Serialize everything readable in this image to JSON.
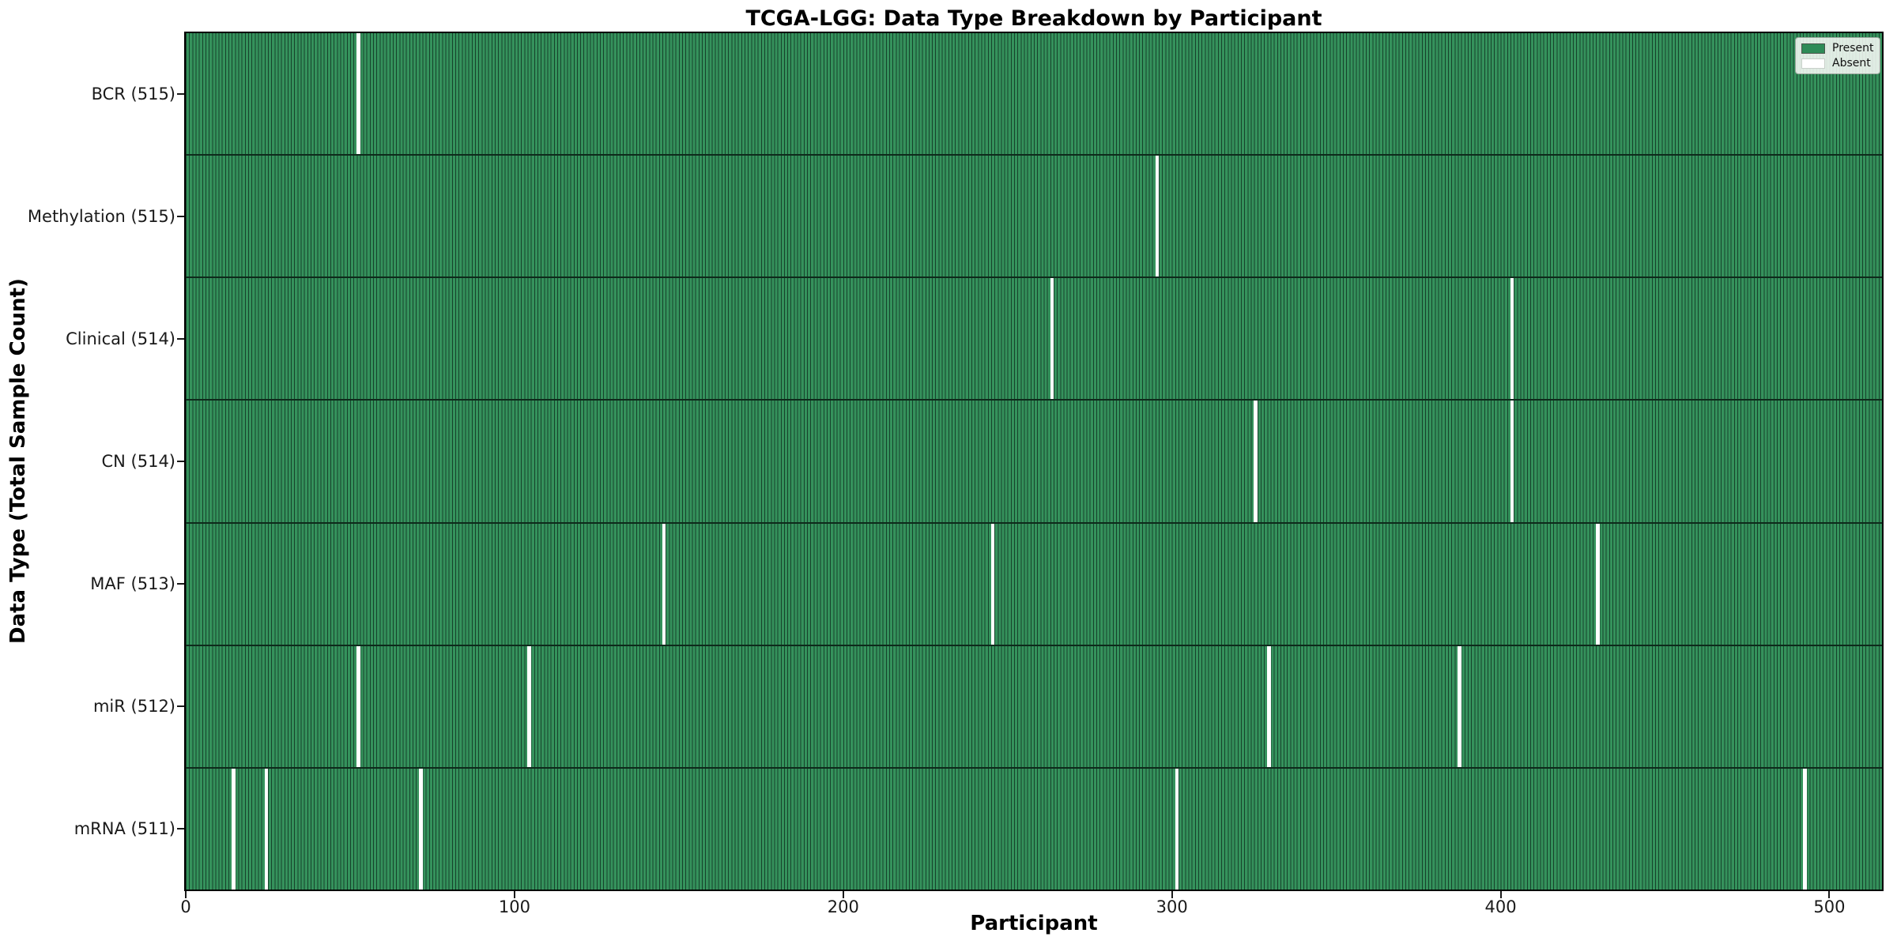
{
  "chart_data": {
    "type": "heatmap",
    "title": "TCGA-LGG: Data Type Breakdown by Participant",
    "xlabel": "Participant",
    "ylabel": "Data Type (Total Sample Count)",
    "x_range": [
      0,
      516
    ],
    "x_ticks": [
      0,
      100,
      200,
      300,
      400,
      500
    ],
    "total_participants": 516,
    "grid": false,
    "categories": [
      "BCR (515)",
      "Methylation (515)",
      "Clinical (514)",
      "CN (514)",
      "MAF (513)",
      "miR (512)",
      "mRNA (511)"
    ],
    "rows": [
      {
        "name": "BCR",
        "label": "BCR (515)",
        "present_count": 515,
        "absent_count": 1,
        "absent_participants": [
          52
        ]
      },
      {
        "name": "Methylation",
        "label": "Methylation (515)",
        "present_count": 515,
        "absent_count": 1,
        "absent_participants": [
          295
        ]
      },
      {
        "name": "Clinical",
        "label": "Clinical (514)",
        "present_count": 514,
        "absent_count": 2,
        "absent_participants": [
          263,
          403
        ]
      },
      {
        "name": "CN",
        "label": "CN (514)",
        "present_count": 514,
        "absent_count": 2,
        "absent_participants": [
          325,
          403
        ]
      },
      {
        "name": "MAF",
        "label": "MAF (513)",
        "present_count": 513,
        "absent_count": 3,
        "absent_participants": [
          145,
          245,
          429
        ]
      },
      {
        "name": "miR",
        "label": "miR (512)",
        "present_count": 512,
        "absent_count": 4,
        "absent_participants": [
          52,
          104,
          329,
          387
        ]
      },
      {
        "name": "mRNA",
        "label": "mRNA (511)",
        "present_count": 511,
        "absent_count": 5,
        "absent_participants": [
          14,
          24,
          71,
          301,
          492
        ]
      }
    ],
    "legend": {
      "position": "upper right",
      "items": [
        {
          "label": "Present",
          "color": "#2e8b57"
        },
        {
          "label": "Absent",
          "color": "#ffffff"
        }
      ]
    },
    "colors": {
      "present_fill": "#35925c",
      "bar_edge": "#16422b",
      "absent": "#ffffff",
      "row_separator": "#0e2a1b",
      "spine": "#000000"
    }
  }
}
